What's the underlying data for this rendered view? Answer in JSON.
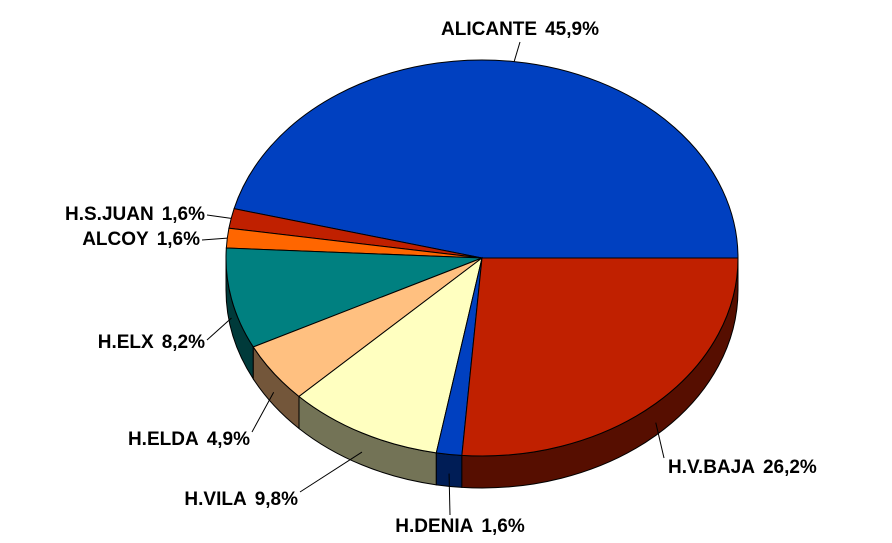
{
  "chart_data": {
    "type": "pie",
    "categories": [
      "ALICANTE",
      "H.S.JUAN",
      "ALCOY",
      "H.ELX",
      "H.ELDA",
      "H.VILA",
      "H.DENIA",
      "H.V.BAJA"
    ],
    "values": [
      45.9,
      1.6,
      1.6,
      8.2,
      4.9,
      9.8,
      1.6,
      26.2
    ],
    "value_labels": [
      "45,9%",
      "1,6%",
      "1,6%",
      "8,2%",
      "4,9%",
      "9,8%",
      "1,6%",
      "26,2%"
    ],
    "colors": [
      "#0040c0",
      "#c02000",
      "#ff6600",
      "#008080",
      "#ffc080",
      "#ffffc0",
      "#0040c0",
      "#c02000"
    ]
  }
}
